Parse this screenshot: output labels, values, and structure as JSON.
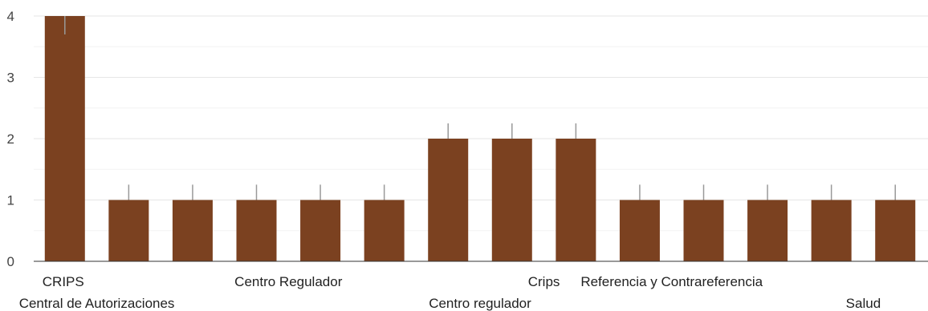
{
  "chart_data": {
    "type": "bar",
    "categories": [
      "CRIPS",
      "Central de Autorizaciones",
      "",
      "",
      "Centro Regulador",
      "",
      "",
      "Centro regulador",
      "Crips",
      "",
      "Referencia y Contrareferencia",
      "",
      "",
      "Salud"
    ],
    "values": [
      4,
      1,
      1,
      1,
      1,
      1,
      2,
      2,
      2,
      1,
      1,
      1,
      1,
      1
    ],
    "error_bar_top": [
      3.7,
      1.25,
      1.25,
      1.25,
      1.25,
      1.25,
      2.25,
      2.25,
      2.25,
      1.25,
      1.25,
      1.25,
      1.25,
      1.25
    ],
    "title": "",
    "xlabel": "",
    "ylabel": "",
    "ylim": [
      0,
      4
    ],
    "y_ticks": [
      0,
      1,
      2,
      3,
      4
    ],
    "y_tick_labels": [
      "0",
      "1",
      "2",
      "3",
      "4"
    ],
    "grid": true,
    "legend": "none",
    "colors": {
      "bar": "#7B4120",
      "error": "#999999",
      "grid_major": "#E6E6E6",
      "grid_minor": "#F4F4F4",
      "axis": "#333333"
    }
  }
}
